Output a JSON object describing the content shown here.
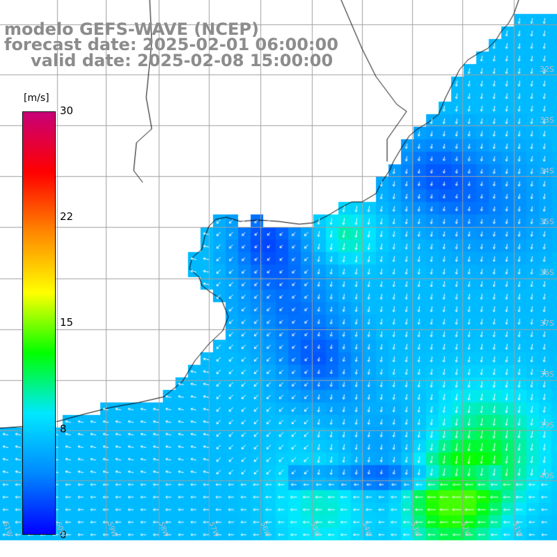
{
  "titles": {
    "line1": "modelo GEFS-WAVE (NCEP)",
    "line2": "forecast date: 2025-02-01 06:00:00",
    "line3": "valid date: 2025-02-08 15:00:00"
  },
  "colorbar": {
    "unit": "[m/s]",
    "ticks": [
      "30",
      "22",
      "15",
      "8",
      "0"
    ],
    "range": [
      0,
      30
    ],
    "stops": [
      "#0000ff",
      "#0088ff",
      "#00e8ff",
      "#00ff00",
      "#ffff00",
      "#ff8800",
      "#ff0000",
      "#c80078"
    ]
  },
  "lat_labels": [
    "32S",
    "33S",
    "34S",
    "35S",
    "36S",
    "37S",
    "38S",
    "39S",
    "40S"
  ],
  "lon_labels": [
    "61W",
    "60W",
    "59W",
    "58W",
    "57W",
    "56W",
    "55W",
    "54W",
    "53W",
    "52W",
    "51W"
  ],
  "map": {
    "grid_color": "#a0a0a0",
    "coast_color": "#000000",
    "land_color": "#ffffff",
    "vector_color": "#ffffff"
  }
}
